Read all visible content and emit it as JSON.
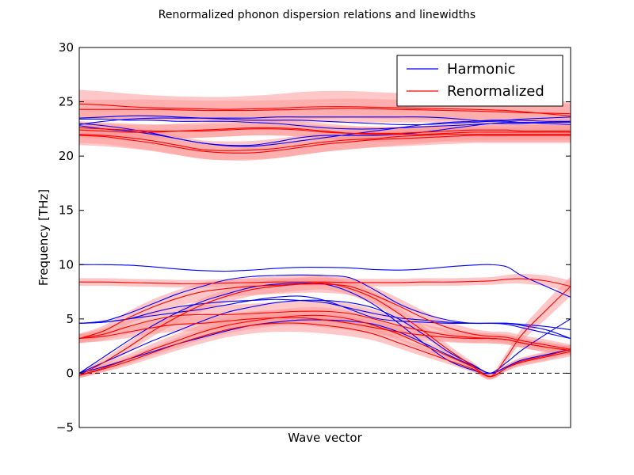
{
  "chart_data": {
    "type": "line",
    "title": "Renormalized phonon dispersion relations and linewidths",
    "xlabel": "Wave vector",
    "ylabel": "Frequency [THz]",
    "ylim": [
      -5,
      30
    ],
    "yticks": [
      "30",
      "25",
      "20",
      "15",
      "10",
      "5",
      "0",
      "−5"
    ],
    "xlim": [
      0,
      1
    ],
    "reference_line": {
      "y": 0,
      "style": "dashed"
    },
    "legend": {
      "position": "top-right",
      "entries": [
        "Harmonic",
        "Renormalized"
      ]
    },
    "colors": {
      "harmonic": "#0000ff",
      "renormalized": "#ff0000",
      "linewidth_band": "#ff9999"
    },
    "x": [
      0,
      0.05,
      0.1,
      0.15,
      0.2,
      0.25,
      0.3,
      0.35,
      0.4,
      0.45,
      0.5,
      0.55,
      0.6,
      0.65,
      0.7,
      0.75,
      0.8,
      0.837,
      0.87,
      0.9,
      0.95,
      1.0
    ],
    "series": [
      {
        "group": "harmonic",
        "values": [
          0,
          1.5,
          3.0,
          4.4,
          5.6,
          6.6,
          7.3,
          7.9,
          8.2,
          8.3,
          8.2,
          7.5,
          6.3,
          4.6,
          2.8,
          1.2,
          0.3,
          0,
          1.0,
          2.1,
          3.6,
          5.0
        ]
      },
      {
        "group": "harmonic",
        "values": [
          0,
          1.0,
          2.0,
          3.0,
          3.9,
          4.8,
          5.6,
          6.1,
          6.5,
          6.7,
          6.7,
          6.5,
          6.0,
          5.0,
          3.6,
          2.0,
          0.8,
          0,
          0.6,
          1.2,
          1.7,
          2.2
        ]
      },
      {
        "group": "harmonic",
        "values": [
          0,
          0.6,
          1.3,
          2.0,
          2.7,
          3.3,
          3.9,
          4.4,
          4.7,
          4.9,
          4.9,
          4.8,
          4.5,
          3.8,
          2.8,
          1.7,
          0.7,
          0,
          0.6,
          1.2,
          1.7,
          2.2
        ]
      },
      {
        "group": "harmonic",
        "values": [
          4.6,
          4.8,
          5.5,
          6.4,
          7.3,
          8.0,
          8.6,
          8.9,
          9.0,
          9.05,
          9.0,
          8.8,
          7.7,
          6.4,
          5.5,
          4.9,
          4.6,
          4.6,
          4.5,
          4.2,
          3.7,
          3.2
        ]
      },
      {
        "group": "harmonic",
        "values": [
          4.6,
          4.7,
          5.0,
          5.6,
          6.1,
          6.4,
          6.6,
          6.7,
          6.8,
          6.7,
          6.5,
          6.0,
          5.5,
          5.1,
          4.9,
          4.7,
          4.6,
          4.6,
          4.6,
          4.4,
          4.0,
          3.2
        ]
      },
      {
        "group": "harmonic",
        "values": [
          4.6,
          4.7,
          5.0,
          5.3,
          5.6,
          5.9,
          6.3,
          6.7,
          7.0,
          7.1,
          6.7,
          5.9,
          5.1,
          4.8,
          4.7,
          4.6,
          4.6,
          4.6,
          4.6,
          4.5,
          4.3,
          4.0
        ]
      },
      {
        "group": "harmonic",
        "values": [
          10.0,
          10.0,
          9.95,
          9.8,
          9.6,
          9.45,
          9.4,
          9.5,
          9.65,
          9.75,
          9.75,
          9.7,
          9.55,
          9.5,
          9.6,
          9.8,
          9.95,
          10.0,
          9.8,
          9.0,
          8.0,
          7.0
        ]
      },
      {
        "group": "harmonic",
        "values": [
          22.9,
          23.2,
          23.4,
          23.5,
          23.5,
          23.5,
          23.5,
          23.5,
          23.6,
          23.6,
          23.6,
          23.6,
          23.6,
          23.6,
          23.6,
          23.5,
          23.3,
          23.2,
          23.3,
          23.4,
          23.5,
          23.6
        ]
      },
      {
        "group": "harmonic",
        "values": [
          23.5,
          23.6,
          23.7,
          23.7,
          23.6,
          23.5,
          23.4,
          23.3,
          23.3,
          23.3,
          23.2,
          23.1,
          23.0,
          22.9,
          22.9,
          23.0,
          23.1,
          23.2,
          23.2,
          23.1,
          23.0,
          22.9
        ]
      },
      {
        "group": "harmonic",
        "values": [
          23.4,
          23.4,
          23.3,
          23.3,
          23.2,
          23.2,
          23.2,
          23.1,
          23.0,
          22.8,
          22.6,
          22.5,
          22.5,
          22.6,
          22.7,
          22.8,
          22.9,
          23.0,
          23.0,
          23.0,
          23.1,
          23.2
        ]
      },
      {
        "group": "harmonic",
        "values": [
          22.8,
          22.5,
          22.3,
          22.0,
          21.6,
          21.2,
          21.0,
          21.0,
          21.3,
          21.7,
          21.9,
          21.9,
          21.9,
          22.0,
          22.2,
          22.5,
          22.8,
          23.0,
          23.1,
          23.1,
          23.1,
          23.1
        ]
      },
      {
        "group": "harmonic",
        "values": [
          23.0,
          22.8,
          22.5,
          22.1,
          21.6,
          21.2,
          20.95,
          20.9,
          21.1,
          21.4,
          21.7,
          22.0,
          22.3,
          22.6,
          22.9,
          23.1,
          23.2,
          23.3,
          23.3,
          23.3,
          23.2,
          23.2
        ]
      },
      {
        "group": "renormalized",
        "values": [
          -0.2,
          1.0,
          2.4,
          3.9,
          5.2,
          6.3,
          7.1,
          7.7,
          8.0,
          8.2,
          8.3,
          7.8,
          6.9,
          5.5,
          3.9,
          2.2,
          0.7,
          -0.3,
          1.5,
          3.5,
          5.8,
          8.0
        ],
        "halfwidth": [
          0.25,
          0.35,
          0.45,
          0.5,
          0.55,
          0.6,
          0.6,
          0.6,
          0.6,
          0.6,
          0.6,
          0.6,
          0.6,
          0.55,
          0.5,
          0.45,
          0.35,
          0.3,
          0.45,
          0.6,
          0.8,
          0.9
        ]
      },
      {
        "group": "renormalized",
        "values": [
          -0.2,
          0.5,
          1.3,
          2.2,
          3.0,
          3.8,
          4.4,
          4.8,
          5.1,
          5.3,
          5.3,
          5.0,
          4.4,
          3.6,
          2.6,
          1.6,
          0.6,
          -0.3,
          0.5,
          1.1,
          1.6,
          2.2
        ],
        "halfwidth": [
          0.25,
          0.35,
          0.45,
          0.55,
          0.65,
          0.7,
          0.75,
          0.75,
          0.75,
          0.75,
          0.75,
          0.7,
          0.6,
          0.55,
          0.5,
          0.4,
          0.3,
          0.25,
          0.3,
          0.35,
          0.4,
          0.45
        ]
      },
      {
        "group": "renormalized",
        "values": [
          -0.2,
          0.4,
          1.1,
          1.9,
          2.7,
          3.4,
          4.0,
          4.4,
          4.6,
          4.6,
          4.4,
          4.1,
          3.6,
          2.8,
          2.0,
          1.2,
          0.4,
          -0.3,
          0.5,
          1.0,
          1.5,
          2.0
        ],
        "halfwidth": [
          0.25,
          0.3,
          0.4,
          0.5,
          0.6,
          0.65,
          0.7,
          0.75,
          0.8,
          0.8,
          0.75,
          0.7,
          0.6,
          0.5,
          0.45,
          0.35,
          0.3,
          0.25,
          0.3,
          0.35,
          0.4,
          0.45
        ]
      },
      {
        "group": "renormalized",
        "values": [
          3.2,
          3.9,
          5.1,
          6.1,
          6.9,
          7.5,
          7.8,
          8.0,
          8.1,
          8.2,
          8.2,
          8.0,
          7.2,
          6.2,
          5.1,
          4.2,
          3.6,
          3.4,
          3.3,
          3.0,
          2.6,
          2.2
        ],
        "halfwidth": [
          0.4,
          0.5,
          0.6,
          0.7,
          0.75,
          0.8,
          0.8,
          0.8,
          0.8,
          0.8,
          0.8,
          0.8,
          0.75,
          0.7,
          0.65,
          0.55,
          0.5,
          0.45,
          0.5,
          0.5,
          0.5,
          0.45
        ]
      },
      {
        "group": "renormalized",
        "values": [
          3.2,
          3.6,
          4.3,
          4.9,
          5.3,
          5.4,
          5.4,
          5.5,
          5.6,
          5.7,
          5.7,
          5.5,
          5.0,
          4.4,
          3.9,
          3.5,
          3.3,
          3.2,
          3.1,
          2.8,
          2.4,
          2.1
        ],
        "halfwidth": [
          0.45,
          0.55,
          0.7,
          0.8,
          0.85,
          0.9,
          0.9,
          0.9,
          0.95,
          0.95,
          0.95,
          0.9,
          0.85,
          0.75,
          0.65,
          0.55,
          0.5,
          0.45,
          0.45,
          0.45,
          0.45,
          0.4
        ]
      },
      {
        "group": "renormalized",
        "values": [
          3.2,
          3.4,
          3.8,
          4.2,
          4.5,
          4.6,
          4.8,
          5.0,
          5.1,
          5.1,
          4.9,
          4.6,
          4.2,
          3.8,
          3.5,
          3.3,
          3.2,
          3.2,
          3.1,
          2.8,
          2.4,
          2.1
        ],
        "halfwidth": [
          0.4,
          0.45,
          0.55,
          0.6,
          0.65,
          0.7,
          0.7,
          0.7,
          0.7,
          0.7,
          0.7,
          0.65,
          0.6,
          0.55,
          0.5,
          0.45,
          0.45,
          0.45,
          0.45,
          0.45,
          0.45,
          0.4
        ]
      },
      {
        "group": "renormalized",
        "values": [
          8.4,
          8.4,
          8.35,
          8.3,
          8.25,
          8.25,
          8.3,
          8.35,
          8.4,
          8.4,
          8.4,
          8.35,
          8.35,
          8.35,
          8.4,
          8.4,
          8.45,
          8.5,
          8.65,
          8.7,
          8.5,
          8.0
        ],
        "halfwidth": [
          0.35,
          0.35,
          0.35,
          0.35,
          0.35,
          0.35,
          0.35,
          0.35,
          0.35,
          0.35,
          0.35,
          0.35,
          0.35,
          0.35,
          0.35,
          0.35,
          0.35,
          0.35,
          0.4,
          0.45,
          0.5,
          0.55
        ]
      },
      {
        "group": "renormalized",
        "values": [
          24.8,
          24.7,
          24.55,
          24.45,
          24.4,
          24.35,
          24.3,
          24.35,
          24.4,
          24.5,
          24.55,
          24.55,
          24.5,
          24.45,
          24.4,
          24.35,
          24.3,
          24.25,
          24.2,
          24.1,
          23.9,
          23.7
        ],
        "halfwidth": [
          1.3,
          1.25,
          1.2,
          1.15,
          1.1,
          1.1,
          1.15,
          1.2,
          1.3,
          1.4,
          1.45,
          1.45,
          1.4,
          1.35,
          1.3,
          1.3,
          1.3,
          1.3,
          1.3,
          1.3,
          1.3,
          1.3
        ]
      },
      {
        "group": "renormalized",
        "values": [
          24.3,
          24.3,
          24.3,
          24.3,
          24.25,
          24.2,
          24.2,
          24.2,
          24.25,
          24.3,
          24.35,
          24.4,
          24.35,
          24.3,
          24.25,
          24.2,
          24.15,
          24.1,
          24.05,
          24.0,
          23.95,
          23.9
        ],
        "halfwidth": [
          0.9,
          0.9,
          0.9,
          0.9,
          0.9,
          0.9,
          0.9,
          0.9,
          0.9,
          0.9,
          0.9,
          0.9,
          0.9,
          0.9,
          0.9,
          0.9,
          0.9,
          0.9,
          0.9,
          0.9,
          0.9,
          0.9
        ]
      },
      {
        "group": "renormalized",
        "values": [
          22.4,
          22.3,
          22.2,
          22.2,
          22.3,
          22.4,
          22.5,
          22.6,
          22.6,
          22.5,
          22.3,
          22.1,
          22.0,
          22.0,
          22.0,
          22.1,
          22.2,
          22.2,
          22.2,
          22.2,
          22.2,
          22.2
        ],
        "halfwidth": [
          0.7,
          0.7,
          0.7,
          0.7,
          0.7,
          0.7,
          0.7,
          0.7,
          0.7,
          0.7,
          0.7,
          0.7,
          0.7,
          0.7,
          0.7,
          0.7,
          0.7,
          0.7,
          0.7,
          0.7,
          0.7,
          0.7
        ]
      },
      {
        "group": "renormalized",
        "values": [
          22.0,
          21.9,
          21.7,
          21.4,
          21.0,
          20.6,
          20.5,
          20.55,
          20.7,
          21.0,
          21.3,
          21.5,
          21.6,
          21.8,
          21.9,
          22.0,
          22.0,
          22.0,
          22.0,
          22.0,
          22.0,
          22.0
        ],
        "halfwidth": [
          1.0,
          1.0,
          1.0,
          0.95,
          0.9,
          0.85,
          0.85,
          0.85,
          0.9,
          0.9,
          0.9,
          0.85,
          0.8,
          0.8,
          0.75,
          0.7,
          0.7,
          0.7,
          0.7,
          0.7,
          0.7,
          0.7
        ]
      },
      {
        "group": "renormalized",
        "values": [
          21.9,
          21.8,
          21.5,
          21.2,
          20.8,
          20.45,
          20.3,
          20.3,
          20.5,
          20.8,
          21.1,
          21.3,
          21.5,
          21.6,
          21.7,
          21.8,
          21.9,
          21.9,
          21.9,
          21.9,
          21.9,
          21.9
        ],
        "halfwidth": [
          0.7,
          0.7,
          0.7,
          0.7,
          0.7,
          0.7,
          0.7,
          0.7,
          0.7,
          0.7,
          0.7,
          0.7,
          0.7,
          0.7,
          0.7,
          0.7,
          0.7,
          0.7,
          0.7,
          0.7,
          0.7,
          0.7
        ]
      },
      {
        "group": "renormalized",
        "values": [
          22.6,
          22.5,
          22.4,
          22.3,
          22.3,
          22.3,
          22.4,
          22.5,
          22.5,
          22.4,
          22.2,
          22.1,
          22.1,
          22.1,
          22.2,
          22.3,
          22.4,
          22.4,
          22.4,
          22.3,
          22.3,
          22.3
        ],
        "halfwidth": [
          0.6,
          0.6,
          0.6,
          0.6,
          0.6,
          0.6,
          0.6,
          0.6,
          0.6,
          0.6,
          0.6,
          0.6,
          0.6,
          0.6,
          0.6,
          0.6,
          0.6,
          0.6,
          0.6,
          0.6,
          0.6,
          0.6
        ]
      }
    ]
  }
}
